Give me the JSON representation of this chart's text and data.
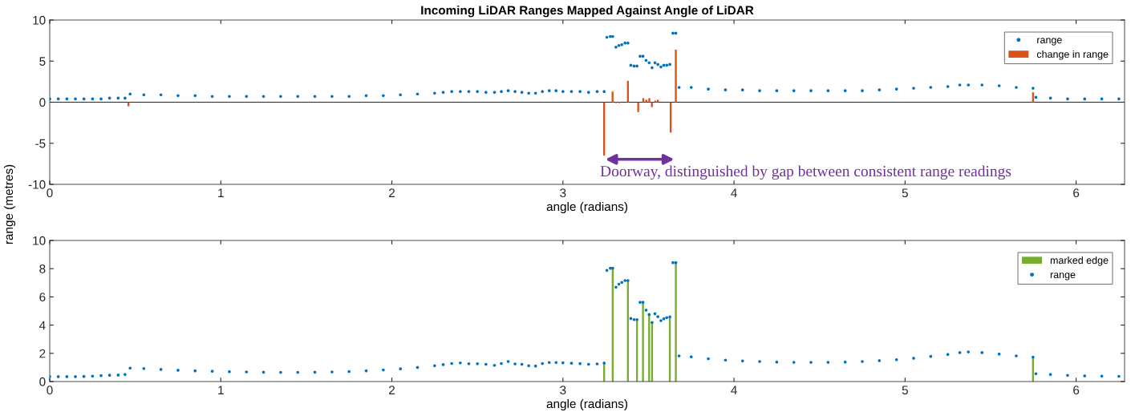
{
  "chart_data": [
    {
      "type": "scatter",
      "title": "Incoming LiDAR Ranges Mapped Against Angle of LiDAR",
      "xlabel": "angle (radians)",
      "ylabel": "range (metres)",
      "xlim": [
        0,
        6.2832
      ],
      "xticks": [
        0,
        1,
        2,
        3,
        4,
        5,
        6
      ],
      "ylim": [
        -10,
        10
      ],
      "yticks": [
        -10,
        -5,
        0,
        5,
        10
      ],
      "grid": false,
      "legend": "top right",
      "marker": "circle",
      "ref_lines": [
        {
          "axis": "y",
          "value": 0,
          "color": "#262626"
        }
      ],
      "annotations": [
        "Doorway, distinguished by gap between consistent range readings"
      ],
      "series": [
        {
          "name": "range",
          "color": "#0072bd",
          "x": [
            0.0,
            0.05,
            0.1,
            0.15,
            0.2,
            0.25,
            0.3,
            0.35,
            0.4,
            0.44,
            0.47,
            0.55,
            0.65,
            0.75,
            0.85,
            0.95,
            1.05,
            1.15,
            1.25,
            1.35,
            1.45,
            1.55,
            1.65,
            1.75,
            1.85,
            1.95,
            2.05,
            2.15,
            2.25,
            2.3,
            2.35,
            2.4,
            2.45,
            2.5,
            2.55,
            2.6,
            2.64,
            2.68,
            2.72,
            2.76,
            2.8,
            2.84,
            2.88,
            2.92,
            2.96,
            3.0,
            3.05,
            3.1,
            3.15,
            3.2,
            3.241,
            3.257,
            3.277,
            3.291,
            3.31,
            3.327,
            3.344,
            3.363,
            3.38,
            3.397,
            3.416,
            3.433,
            3.451,
            3.468,
            3.486,
            3.504,
            3.521,
            3.538,
            3.555,
            3.573,
            3.59,
            3.607,
            3.625,
            3.643,
            3.66,
            3.679,
            3.75,
            3.85,
            3.95,
            4.05,
            4.15,
            4.25,
            4.35,
            4.45,
            4.55,
            4.65,
            4.75,
            4.85,
            4.95,
            5.05,
            5.15,
            5.25,
            5.32,
            5.37,
            5.45,
            5.55,
            5.65,
            5.748,
            5.765,
            5.85,
            5.95,
            6.05,
            6.15,
            6.25
          ],
          "values": [
            0.4,
            0.4,
            0.4,
            0.4,
            0.4,
            0.4,
            0.4,
            0.5,
            0.5,
            0.5,
            1.0,
            0.9,
            0.9,
            0.8,
            0.8,
            0.7,
            0.7,
            0.7,
            0.7,
            0.7,
            0.7,
            0.7,
            0.7,
            0.7,
            0.8,
            0.8,
            0.9,
            1.0,
            1.1,
            1.2,
            1.3,
            1.3,
            1.3,
            1.3,
            1.2,
            1.2,
            1.3,
            1.4,
            1.3,
            1.2,
            1.1,
            1.1,
            1.3,
            1.4,
            1.4,
            1.3,
            1.3,
            1.3,
            1.2,
            1.3,
            1.3,
            7.9,
            8.0,
            8.0,
            6.7,
            6.9,
            7.0,
            7.2,
            7.2,
            4.5,
            4.4,
            4.4,
            5.6,
            5.6,
            5.1,
            4.8,
            4.2,
            4.8,
            4.6,
            4.3,
            4.5,
            4.5,
            4.6,
            8.4,
            8.4,
            1.8,
            1.8,
            1.6,
            1.5,
            1.5,
            1.4,
            1.4,
            1.4,
            1.4,
            1.4,
            1.4,
            1.4,
            1.5,
            1.6,
            1.7,
            1.8,
            1.9,
            2.1,
            2.1,
            2.1,
            2.0,
            1.8,
            1.7,
            0.6,
            0.5,
            0.4,
            0.4,
            0.4,
            0.4
          ]
        },
        {
          "name": "change in range",
          "type": "bar",
          "color": "#d95319",
          "x": [
            0.46,
            3.241,
            3.29,
            3.31,
            3.33,
            3.38,
            3.44,
            3.47,
            3.487,
            3.505,
            3.52,
            3.54,
            3.555,
            3.63,
            3.66,
            5.748
          ],
          "values": [
            -0.5,
            -6.5,
            1.3,
            -0.1,
            -0.1,
            2.6,
            -1.2,
            0.5,
            0.3,
            0.5,
            -0.6,
            0.2,
            0.3,
            -3.7,
            6.4,
            1.2
          ]
        }
      ]
    },
    {
      "type": "scatter",
      "xlabel": "angle (radians)",
      "xlim": [
        0,
        6.2832
      ],
      "xticks": [
        0,
        1,
        2,
        3,
        4,
        5,
        6
      ],
      "ylim": [
        0,
        10
      ],
      "yticks": [
        0,
        2,
        4,
        6,
        8,
        10
      ],
      "grid": false,
      "legend": "top right",
      "marker": "circle",
      "series": [
        {
          "name": "marked edge",
          "type": "bar",
          "color": "#77ac30",
          "x": [
            3.241,
            3.291,
            3.38,
            3.433,
            3.468,
            3.504,
            3.521,
            3.625,
            3.66,
            5.748
          ],
          "values": [
            1.31,
            8.03,
            7.16,
            4.39,
            5.62,
            4.75,
            4.19,
            4.59,
            8.43,
            1.73
          ]
        },
        {
          "name": "range",
          "color": "#0072bd",
          "x": [
            0.0,
            0.05,
            0.1,
            0.15,
            0.2,
            0.25,
            0.3,
            0.35,
            0.4,
            0.44,
            0.47,
            0.55,
            0.65,
            0.75,
            0.85,
            0.95,
            1.05,
            1.15,
            1.25,
            1.35,
            1.45,
            1.55,
            1.65,
            1.75,
            1.85,
            1.95,
            2.05,
            2.15,
            2.25,
            2.3,
            2.35,
            2.4,
            2.45,
            2.5,
            2.55,
            2.6,
            2.64,
            2.68,
            2.72,
            2.76,
            2.8,
            2.84,
            2.88,
            2.92,
            2.96,
            3.0,
            3.05,
            3.1,
            3.15,
            3.2,
            3.241,
            3.257,
            3.277,
            3.291,
            3.31,
            3.327,
            3.344,
            3.363,
            3.38,
            3.397,
            3.416,
            3.433,
            3.451,
            3.468,
            3.486,
            3.504,
            3.521,
            3.538,
            3.555,
            3.573,
            3.59,
            3.607,
            3.625,
            3.643,
            3.66,
            3.679,
            3.75,
            3.85,
            3.95,
            4.05,
            4.15,
            4.25,
            4.35,
            4.45,
            4.55,
            4.65,
            4.75,
            4.85,
            4.95,
            5.05,
            5.15,
            5.25,
            5.32,
            5.37,
            5.45,
            5.55,
            5.65,
            5.748,
            5.765,
            5.85,
            5.95,
            6.05,
            6.15,
            6.25
          ],
          "values": [
            0.35,
            0.35,
            0.35,
            0.35,
            0.36,
            0.38,
            0.42,
            0.45,
            0.46,
            0.5,
            0.95,
            0.92,
            0.86,
            0.8,
            0.76,
            0.73,
            0.7,
            0.68,
            0.66,
            0.65,
            0.65,
            0.66,
            0.68,
            0.71,
            0.76,
            0.82,
            0.9,
            1.0,
            1.12,
            1.2,
            1.28,
            1.32,
            1.26,
            1.26,
            1.22,
            1.15,
            1.28,
            1.42,
            1.25,
            1.22,
            1.12,
            1.1,
            1.28,
            1.35,
            1.35,
            1.33,
            1.3,
            1.27,
            1.22,
            1.25,
            1.31,
            7.88,
            8.03,
            8.03,
            6.69,
            6.9,
            7.03,
            7.16,
            7.16,
            4.47,
            4.39,
            4.39,
            5.62,
            5.62,
            5.06,
            4.75,
            4.19,
            4.81,
            4.6,
            4.32,
            4.45,
            4.53,
            4.59,
            8.43,
            8.43,
            1.82,
            1.75,
            1.62,
            1.52,
            1.46,
            1.42,
            1.38,
            1.36,
            1.36,
            1.36,
            1.38,
            1.42,
            1.48,
            1.55,
            1.65,
            1.78,
            1.92,
            2.05,
            2.1,
            2.05,
            1.95,
            1.82,
            1.73,
            0.55,
            0.5,
            0.44,
            0.4,
            0.38,
            0.37
          ]
        }
      ]
    }
  ]
}
